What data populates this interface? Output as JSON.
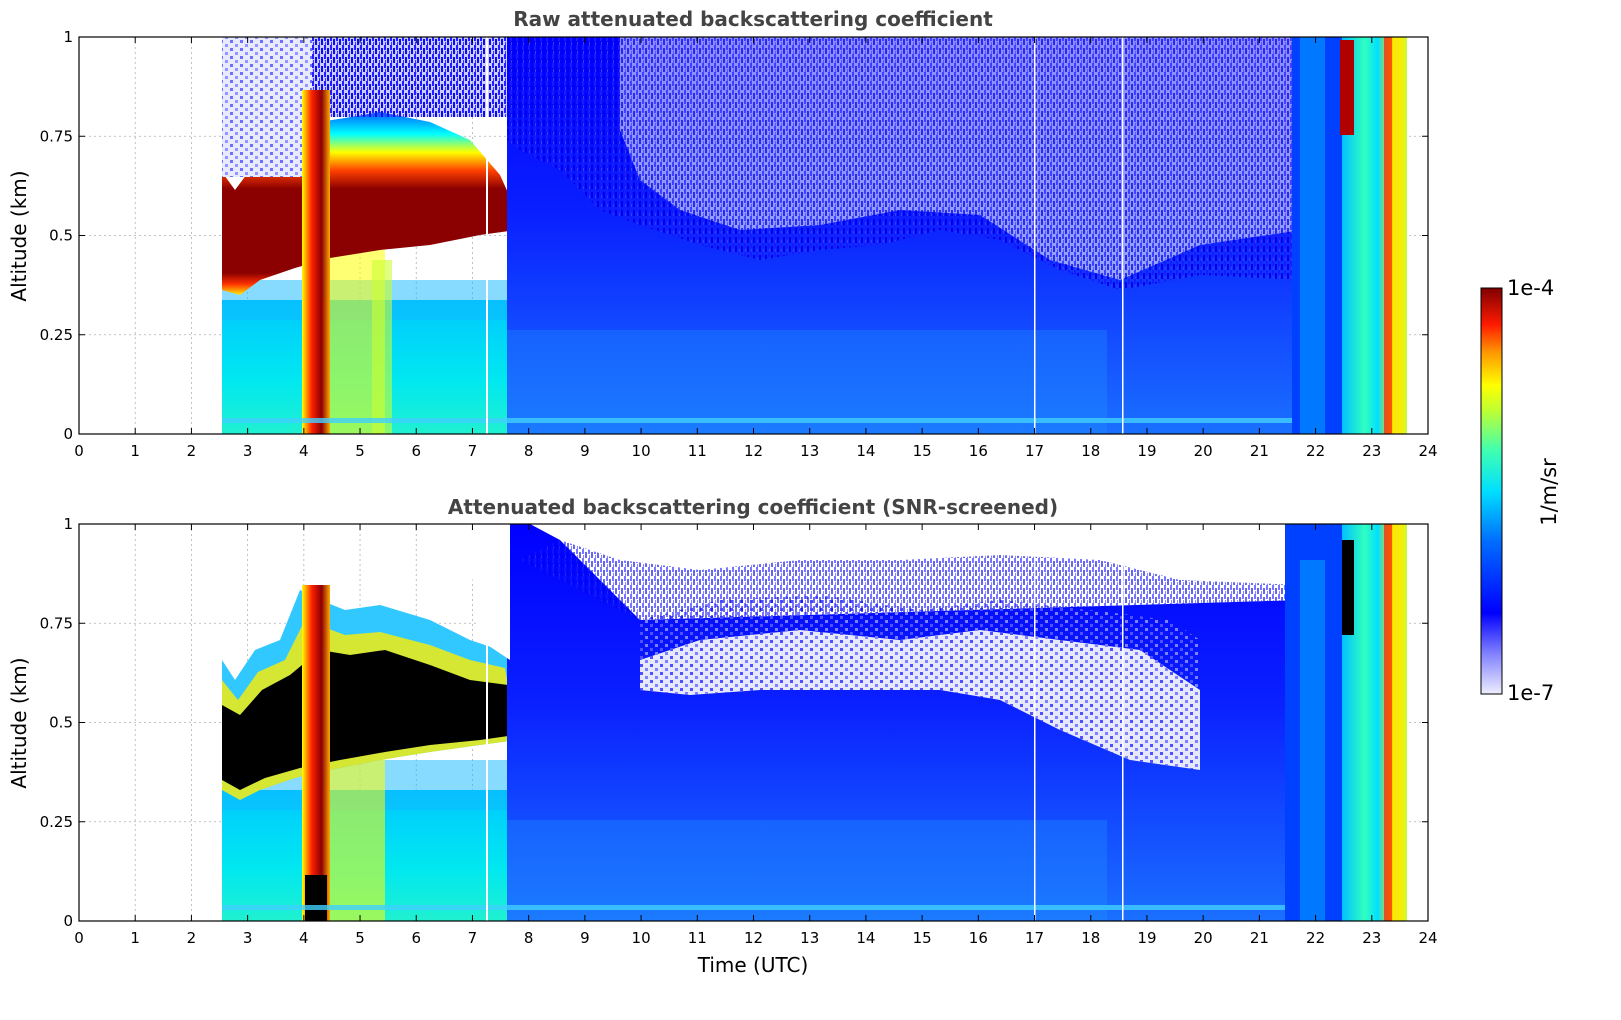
{
  "chart_data": [
    {
      "type": "heatmap",
      "title": "Raw attenuated backscattering coefficient",
      "xlabel": "",
      "ylabel": "Altitude (km)",
      "xlim": [
        0,
        24
      ],
      "ylim": [
        0,
        1
      ],
      "x_ticks": [
        "0",
        "1",
        "2",
        "3",
        "4",
        "5",
        "6",
        "7",
        "8",
        "9",
        "10",
        "11",
        "12",
        "13",
        "14",
        "15",
        "16",
        "17",
        "18",
        "19",
        "20",
        "21",
        "22",
        "23",
        "24"
      ],
      "y_ticks": [
        "0",
        "0.25",
        "0.5",
        "0.75",
        "1"
      ],
      "grid": true,
      "data_start_hour": 2.55,
      "data_end_hour": 23.65,
      "layers": [
        {
          "name": "aerosol layer top",
          "hours": [
            2.6,
            3.0,
            4.0,
            5.0,
            6.0,
            7.0,
            7.7
          ],
          "altitude_km": [
            0.63,
            0.62,
            0.72,
            0.77,
            0.75,
            0.7,
            0.65
          ]
        },
        {
          "name": "aerosol layer base",
          "hours": [
            2.6,
            3.0,
            4.0,
            5.0,
            6.0,
            7.0,
            7.7
          ],
          "altitude_km": [
            0.35,
            0.36,
            0.42,
            0.45,
            0.47,
            0.48,
            0.5
          ]
        }
      ]
    },
    {
      "type": "heatmap",
      "title": "Attenuated backscattering coefficient (SNR-screened)",
      "xlabel": "Time (UTC)",
      "ylabel": "Altitude (km)",
      "xlim": [
        0,
        24
      ],
      "ylim": [
        0,
        1
      ],
      "x_ticks": [
        "0",
        "1",
        "2",
        "3",
        "4",
        "5",
        "6",
        "7",
        "8",
        "9",
        "10",
        "11",
        "12",
        "13",
        "14",
        "15",
        "16",
        "17",
        "18",
        "19",
        "20",
        "21",
        "22",
        "23",
        "24"
      ],
      "y_ticks": [
        "0",
        "0.25",
        "0.5",
        "0.75",
        "1"
      ],
      "grid": true,
      "data_start_hour": 2.55,
      "data_end_hour": 23.65
    }
  ],
  "colorbar": {
    "label": "1/m/sr",
    "max_label": "1e-4",
    "min_label": "1e-7",
    "scale": "log",
    "colors": [
      "#7f0000",
      "#ff0000",
      "#ffff00",
      "#00ffff",
      "#0000ff",
      "#eeeeff"
    ]
  }
}
